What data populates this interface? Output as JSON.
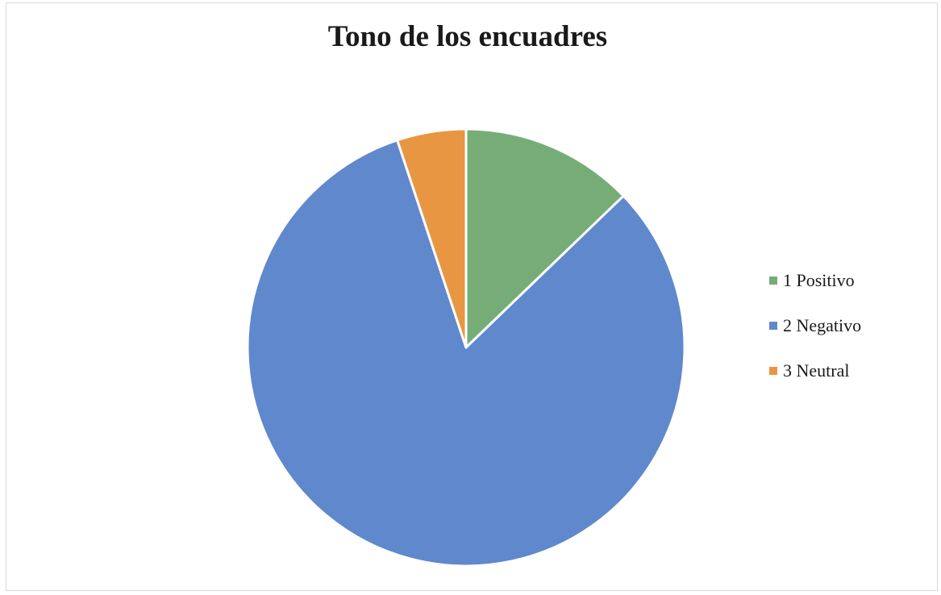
{
  "chart_data": {
    "type": "pie",
    "title": "Tono de los encuadres",
    "slices": [
      {
        "label": "1 Positivo",
        "value": 12.8,
        "color": "#76ad77"
      },
      {
        "label": "2 Negativo",
        "value": 82.1,
        "color": "#6088cc"
      },
      {
        "label": "3 Neutral",
        "value": 5.1,
        "color": "#e99642"
      }
    ],
    "start_angle": "12 o'clock",
    "direction": "clockwise",
    "legend_position": "right"
  }
}
